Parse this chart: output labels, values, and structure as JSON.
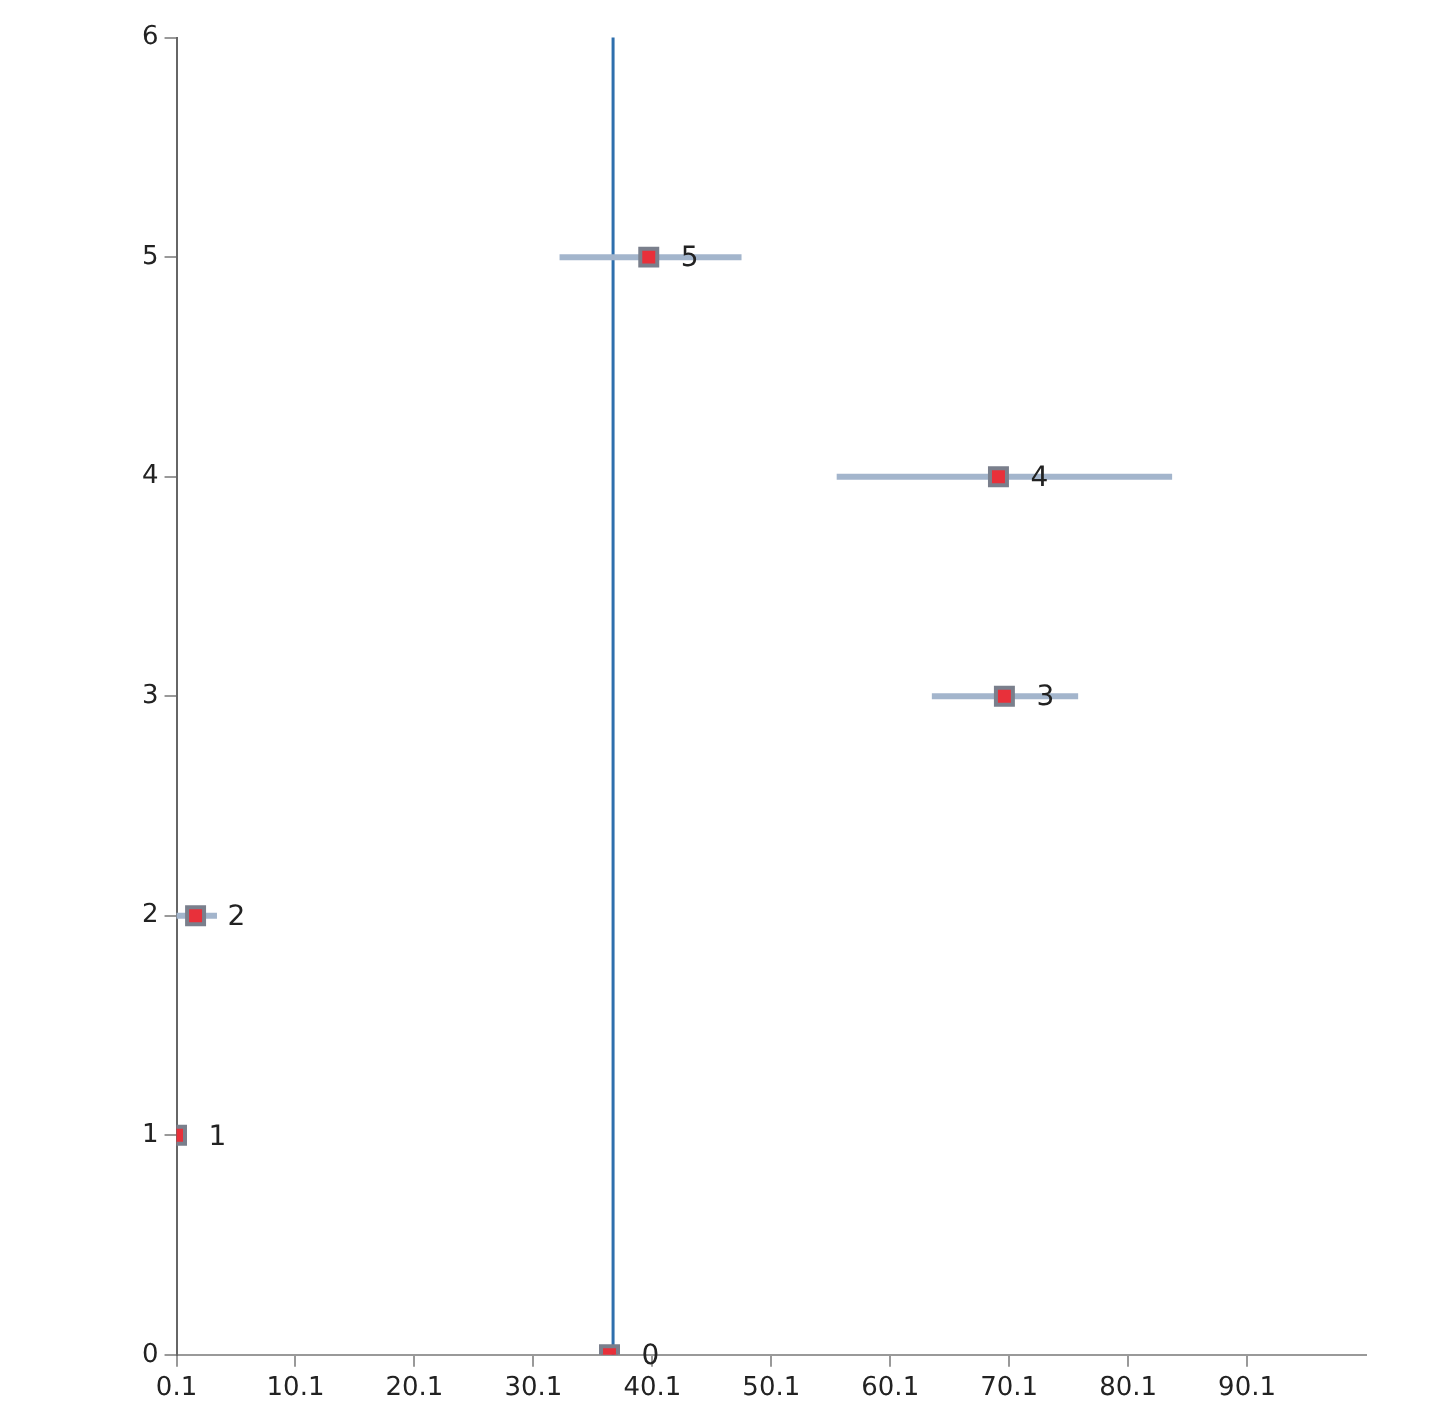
{
  "chart_data": {
    "type": "scatter",
    "x": [
      36.5,
      0.1,
      1.7,
      69.7,
      69.2,
      39.8
    ],
    "values": [
      0,
      1,
      2,
      3,
      4,
      5
    ],
    "xerrors": [
      null,
      null,
      [
        0.1,
        3.5
      ],
      [
        63.6,
        75.9
      ],
      [
        55.6,
        83.8
      ],
      [
        32.3,
        47.6
      ]
    ],
    "color": "#e8303a",
    "marker": "square",
    "data_labels": true,
    "xlim": [
      0.1,
      100.1
    ],
    "xticks": [
      0.1,
      10.1,
      20.1,
      30.1,
      40.1,
      50.1,
      60.1,
      70.1,
      80.1,
      90.1
    ],
    "ylim": [
      0,
      6
    ],
    "yticks": [
      0,
      1,
      2,
      3,
      4,
      5,
      6
    ],
    "ref_lines": [
      {
        "axis": "x",
        "value": 36.8,
        "color": "#2e6fad"
      }
    ],
    "grid": false,
    "legend": false
  }
}
